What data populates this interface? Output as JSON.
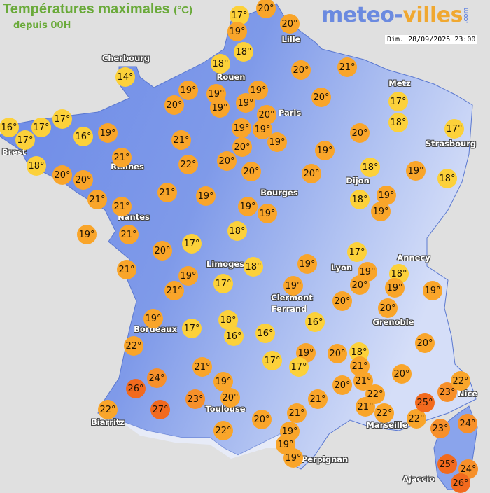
{
  "header": {
    "title": "Températures maximales",
    "unit": "(°C)",
    "subtitle": "depuis 00H",
    "logo": {
      "part1": "meteo-",
      "part2": "villes",
      "suffix": ".com"
    },
    "datetime": "Dim. 28/09/2025 23:00"
  },
  "colors": {
    "sea": "#e0e0e0",
    "land_low": "#6c8ae8",
    "land_high": "#c3d1f5",
    "title": "#6aaa3a",
    "cool": "#fcd13a",
    "mild": "#f9a52a",
    "warm": "#f7902a",
    "hot": "#f26a1e"
  },
  "cities": [
    "Cherbourg",
    "Rouen",
    "Lille",
    "Paris",
    "Metz",
    "Strasbourg",
    "Brest",
    "Rennes",
    "Dijon",
    "Bourges",
    "Nantes",
    "Limoges",
    "Annecy",
    "Lyon",
    "Clermont",
    "Ferrand",
    "Grenoble",
    "Bordeaux",
    "Nice",
    "Toulouse",
    "Marseille",
    "Biarritz",
    "Perpignan",
    "Ajaccio"
  ],
  "temperatures": [
    "17°",
    "19°",
    "20°",
    "20°",
    "18°",
    "18°",
    "20°",
    "21°",
    "14°",
    "19°",
    "19°",
    "19°",
    "20°",
    "19°",
    "19°",
    "20°",
    "20°",
    "19°",
    "19°",
    "19°",
    "20°",
    "17°",
    "18°",
    "17°",
    "20°",
    "19°",
    "16°",
    "17°",
    "17°",
    "17°",
    "16°",
    "19°",
    "18°",
    "20°",
    "20°",
    "21°",
    "21°",
    "22°",
    "20°",
    "20°",
    "21°",
    "21°",
    "21°",
    "19°",
    "19°",
    "19°",
    "20°",
    "18°",
    "19°",
    "18°",
    "18°",
    "19°",
    "19°",
    "19°",
    "21°",
    "18°",
    "17°",
    "20°",
    "21°",
    "19°",
    "21°",
    "17°",
    "18°",
    "19°",
    "19°",
    "19°",
    "17°",
    "18°",
    "16°",
    "16°",
    "16°",
    "22°",
    "24°",
    "26°",
    "27°",
    "22°",
    "21°",
    "19°",
    "23°",
    "20°",
    "22°",
    "17°",
    "19°",
    "20°",
    "18°",
    "19°",
    "19°",
    "20°",
    "20°",
    "20°",
    "19°",
    "17°",
    "17°",
    "20°",
    "18°",
    "21°",
    "21°",
    "20°",
    "20°",
    "21°",
    "21°",
    "20°",
    "19°",
    "19°",
    "19°",
    "22°",
    "21°",
    "22°",
    "22°",
    "25°",
    "23°",
    "22°",
    "23°",
    "24°",
    "25°",
    "24°",
    "26°"
  ]
}
